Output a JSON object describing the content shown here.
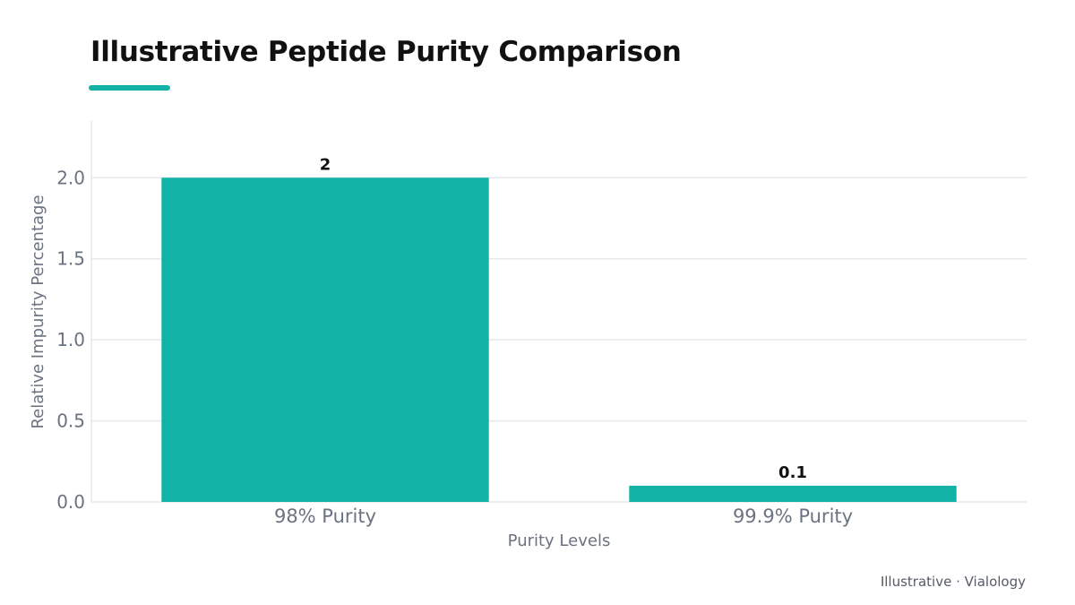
{
  "chart_data": {
    "type": "bar",
    "title": "Illustrative Peptide Purity Comparison",
    "xlabel": "Purity Levels",
    "ylabel": "Relative Impurity Percentage",
    "categories": [
      "98% Purity",
      "99.9% Purity"
    ],
    "values": [
      2,
      0.1
    ],
    "data_labels": [
      "2",
      "0.1"
    ],
    "ylim": [
      0,
      2.35
    ],
    "yticks": [
      0.0,
      0.5,
      1.0,
      1.5,
      2.0
    ],
    "ytick_labels": [
      "0.0",
      "0.5",
      "1.0",
      "1.5",
      "2.0"
    ],
    "grid": true,
    "legend": "none",
    "bar_color": "#12b3a6",
    "accent_color": "#12b3a6"
  },
  "footer": {
    "text": "Illustrative · Vialology"
  }
}
